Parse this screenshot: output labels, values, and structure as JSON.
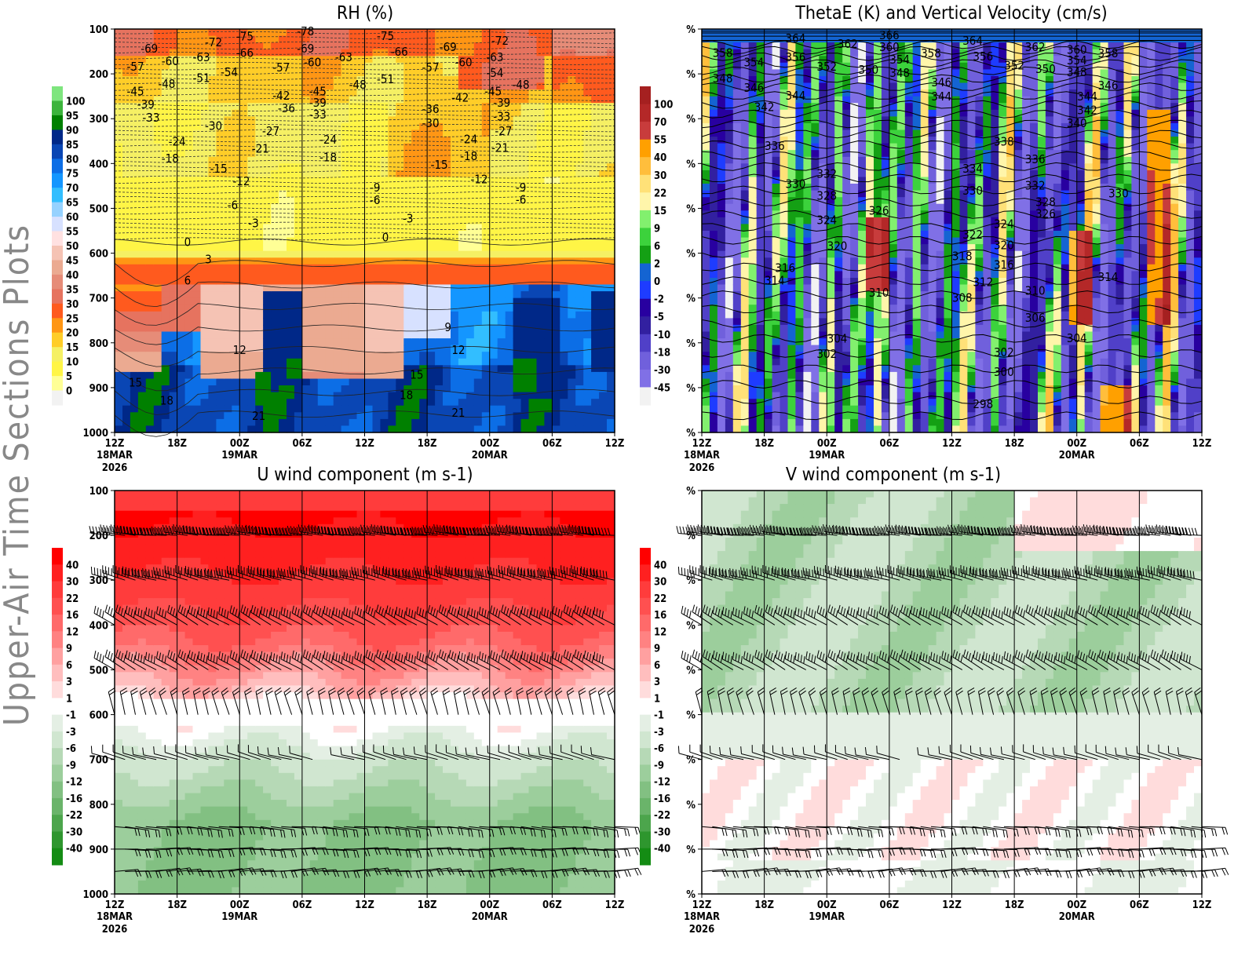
{
  "page_title": "Upper-Air Time Sections Plots",
  "time_axis": {
    "ticks": [
      "12Z",
      "18Z",
      "00Z",
      "06Z",
      "12Z",
      "18Z",
      "00Z",
      "06Z",
      "12Z"
    ],
    "tick_times": [
      "2026-03-18T12:00",
      "2026-03-18T18:00",
      "2026-03-19T00:00",
      "2026-03-19T06:00",
      "2026-03-19T12:00",
      "2026-03-19T18:00",
      "2026-03-20T00:00",
      "2026-03-20T06:00",
      "2026-03-20T12:00"
    ],
    "date_labels": [
      {
        "tick": 0,
        "day": "18MAR",
        "year": "2026"
      },
      {
        "tick": 2,
        "day": "19MAR"
      },
      {
        "tick": 6,
        "day": "20MAR"
      }
    ]
  },
  "chart_data": [
    {
      "type": "heatmap",
      "title": "RH (%)",
      "filled_field": "relative humidity",
      "contour_field": "temperature",
      "y_axis": {
        "ticks": [
          100,
          200,
          300,
          400,
          500,
          600,
          700,
          800,
          900,
          1000
        ],
        "range": [
          100,
          1000
        ],
        "inverted": true
      },
      "colorbar": {
        "levels": [
          0,
          5,
          10,
          15,
          20,
          25,
          30,
          35,
          40,
          45,
          50,
          55,
          60,
          65,
          70,
          75,
          80,
          85,
          90,
          95,
          100
        ],
        "colors": [
          "#f2f2f2",
          "#ffff96",
          "#fff546",
          "#f5f064",
          "#ffcd28",
          "#ff9614",
          "#ff5a1e",
          "#e6735f",
          "#e68c78",
          "#ebaa91",
          "#f5c3b4",
          "#ffe1e1",
          "#d7e1ff",
          "#96d2ff",
          "#32beff",
          "#1496ff",
          "#0c6ee6",
          "#0a46b4",
          "#002888",
          "#008000",
          "#3cb43c",
          "#7ee57e"
        ]
      },
      "contour_labels": [
        [
          "2026-03-18T15:20",
          144,
          "-69"
        ],
        [
          "2026-03-18T21:30",
          130,
          "-72"
        ],
        [
          "2026-03-19T00:30",
          117,
          "-75"
        ],
        [
          "2026-03-19T06:20",
          105,
          "-78"
        ],
        [
          "2026-03-19T14:00",
          116,
          "-75"
        ],
        [
          "2026-03-19T20:00",
          140,
          "-69"
        ],
        [
          "2026-03-20T01:00",
          126,
          "-72"
        ],
        [
          "2026-03-19T00:30",
          153,
          "-66"
        ],
        [
          "2026-03-19T06:20",
          144,
          "-69"
        ],
        [
          "2026-03-19T15:20",
          151,
          "-66"
        ],
        [
          "2026-03-18T20:20",
          163,
          "-63"
        ],
        [
          "2026-03-18T17:20",
          172,
          "-60"
        ],
        [
          "2026-03-18T14:00",
          184,
          "-57"
        ],
        [
          "2026-03-19T10:00",
          163,
          "-63"
        ],
        [
          "2026-03-19T07:00",
          174,
          "-60"
        ],
        [
          "2026-03-19T04:00",
          186,
          "-57"
        ],
        [
          "2026-03-19T21:30",
          174,
          "-60"
        ],
        [
          "2026-03-19T18:20",
          186,
          "-57"
        ],
        [
          "2026-03-20T00:30",
          163,
          "-63"
        ],
        [
          "2026-03-20T00:30",
          198,
          "-54"
        ],
        [
          "2026-03-18T20:20",
          209,
          "-51"
        ],
        [
          "2026-03-18T23:00",
          196,
          "-54"
        ],
        [
          "2026-03-18T17:00",
          223,
          "-48"
        ],
        [
          "2026-03-18T14:00",
          239,
          "-45"
        ],
        [
          "2026-03-19T14:00",
          212,
          "-51"
        ],
        [
          "2026-03-19T11:20",
          224,
          "-48"
        ],
        [
          "2026-03-20T03:00",
          224,
          "-48"
        ],
        [
          "2026-03-20T00:20",
          239,
          "-45"
        ],
        [
          "2026-03-19T21:10",
          253,
          "-42"
        ],
        [
          "2026-03-19T07:30",
          239,
          "-45"
        ],
        [
          "2026-03-19T04:00",
          249,
          "-42"
        ],
        [
          "2026-03-18T15:00",
          268,
          "-39"
        ],
        [
          "2026-03-19T07:30",
          265,
          "-39"
        ],
        [
          "2026-03-19T04:30",
          277,
          "-36"
        ],
        [
          "2026-03-20T01:10",
          265,
          "-39"
        ],
        [
          "2026-03-19T18:20",
          279,
          "-36"
        ],
        [
          "2026-03-18T15:30",
          298,
          "-33"
        ],
        [
          "2026-03-19T07:30",
          291,
          "-33"
        ],
        [
          "2026-03-20T01:10",
          295,
          "-33"
        ],
        [
          "2026-03-19T18:20",
          310,
          "-30"
        ],
        [
          "2026-03-18T21:30",
          316,
          "-30"
        ],
        [
          "2026-03-19T03:00",
          328,
          "-27"
        ],
        [
          "2026-03-18T18:00",
          351,
          "-24"
        ],
        [
          "2026-03-19T02:00",
          367,
          "-21"
        ],
        [
          "2026-03-19T08:30",
          347,
          "-24"
        ],
        [
          "2026-03-20T01:20",
          328,
          "-27"
        ],
        [
          "2026-03-19T22:00",
          346,
          "-24"
        ],
        [
          "2026-03-20T01:00",
          365,
          "-21"
        ],
        [
          "2026-03-18T17:20",
          389,
          "-18"
        ],
        [
          "2026-03-19T08:30",
          386,
          "-18"
        ],
        [
          "2026-03-19T22:00",
          384,
          "-18"
        ],
        [
          "2026-03-18T22:00",
          412,
          "-15"
        ],
        [
          "2026-03-19T19:10",
          403,
          "-15"
        ],
        [
          "2026-03-19T00:10",
          440,
          "-12"
        ],
        [
          "2026-03-19T23:00",
          435,
          "-12"
        ],
        [
          "2026-03-19T13:00",
          454,
          "-9"
        ],
        [
          "2026-03-19T13:00",
          482,
          "-6"
        ],
        [
          "2026-03-20T03:00",
          454,
          "-9"
        ],
        [
          "2026-03-20T03:00",
          481,
          "-6"
        ],
        [
          "2026-03-18T23:20",
          493,
          "-6"
        ],
        [
          "2026-03-19T01:20",
          533,
          "-3"
        ],
        [
          "2026-03-19T16:10",
          523,
          "-3"
        ],
        [
          "2026-03-18T19:00",
          575,
          "0"
        ],
        [
          "2026-03-19T14:00",
          565,
          "0"
        ],
        [
          "2026-03-18T21:00",
          614,
          "3"
        ],
        [
          "2026-03-18T19:00",
          661,
          "6"
        ],
        [
          "2026-03-19T20:00",
          765,
          "9"
        ],
        [
          "2026-03-19T00:00",
          816,
          "12"
        ],
        [
          "2026-03-19T21:00",
          816,
          "12"
        ],
        [
          "2026-03-18T14:00",
          889,
          "15"
        ],
        [
          "2026-03-19T17:00",
          871,
          "15"
        ],
        [
          "2026-03-18T17:00",
          929,
          "18"
        ],
        [
          "2026-03-19T16:00",
          917,
          "18"
        ],
        [
          "2026-03-19T01:50",
          963,
          "21"
        ],
        [
          "2026-03-19T21:00",
          956,
          "21"
        ]
      ]
    },
    {
      "type": "heatmap",
      "title": "ThetaE (K) and Vertical Velocity (cm/s)",
      "filled_field": "vertical velocity",
      "contour_field": "theta-e",
      "y_axis": {
        "tick_label": "%",
        "range": [
          100,
          1000
        ],
        "inverted": true
      },
      "colorbar": {
        "levels": [
          -45,
          -30,
          -18,
          -10,
          -5,
          -2,
          0,
          2,
          6,
          9,
          15,
          22,
          30,
          40,
          55,
          70,
          100
        ],
        "colors": [
          "#f2f2f2",
          "#8070e6",
          "#7060dc",
          "#5040c8",
          "#3220a0",
          "#2800a0",
          "#1e3cff",
          "#1464d2",
          "#14a014",
          "#3cd23c",
          "#82f06e",
          "#fff5aa",
          "#ffe178",
          "#ffbe3c",
          "#ffa000",
          "#c83c3c",
          "#b42828",
          "#a52020"
        ]
      },
      "contour_labels": [
        [
          "2026-03-18T21:00",
          121,
          "364"
        ],
        [
          "2026-03-19T02:00",
          133,
          "362"
        ],
        [
          "2026-03-19T06:00",
          114,
          "366"
        ],
        [
          "2026-03-19T06:00",
          140,
          "360"
        ],
        [
          "2026-03-19T10:00",
          154,
          "358"
        ],
        [
          "2026-03-19T14:00",
          126,
          "364"
        ],
        [
          "2026-03-19T20:00",
          140,
          "362"
        ],
        [
          "2026-03-20T00:00",
          146,
          "360"
        ],
        [
          "2026-03-20T03:00",
          154,
          "358"
        ],
        [
          "2026-03-19T07:00",
          168,
          "354"
        ],
        [
          "2026-03-19T15:00",
          161,
          "356"
        ],
        [
          "2026-03-20T00:00",
          170,
          "354"
        ],
        [
          "2026-03-18T14:00",
          153,
          "358"
        ],
        [
          "2026-03-18T17:00",
          174,
          "354"
        ],
        [
          "2026-03-18T21:00",
          163,
          "356"
        ],
        [
          "2026-03-19T00:00",
          184,
          "352"
        ],
        [
          "2026-03-19T04:00",
          191,
          "350"
        ],
        [
          "2026-03-19T07:00",
          198,
          "348"
        ],
        [
          "2026-03-19T18:00",
          181,
          "352"
        ],
        [
          "2026-03-19T21:00",
          189,
          "350"
        ],
        [
          "2026-03-20T00:00",
          196,
          "348"
        ],
        [
          "2026-03-18T14:00",
          210,
          "348"
        ],
        [
          "2026-03-18T17:00",
          231,
          "346"
        ],
        [
          "2026-03-19T11:00",
          219,
          "346"
        ],
        [
          "2026-03-19T11:00",
          251,
          "344"
        ],
        [
          "2026-03-18T21:00",
          249,
          "344"
        ],
        [
          "2026-03-18T18:00",
          274,
          "342"
        ],
        [
          "2026-03-20T03:00",
          226,
          "346"
        ],
        [
          "2026-03-20T01:00",
          251,
          "344"
        ],
        [
          "2026-03-20T01:00",
          281,
          "342"
        ],
        [
          "2026-03-20T00:00",
          310,
          "340"
        ],
        [
          "2026-03-19T17:00",
          351,
          "338"
        ],
        [
          "2026-03-18T19:00",
          361,
          "336"
        ],
        [
          "2026-03-19T20:00",
          391,
          "336"
        ],
        [
          "2026-03-19T14:00",
          412,
          "334"
        ],
        [
          "2026-03-19T00:00",
          423,
          "332"
        ],
        [
          "2026-03-18T21:00",
          446,
          "330"
        ],
        [
          "2026-03-19T00:00",
          472,
          "328"
        ],
        [
          "2026-03-19T20:00",
          449,
          "332"
        ],
        [
          "2026-03-19T14:00",
          461,
          "330"
        ],
        [
          "2026-03-20T04:00",
          467,
          "330"
        ],
        [
          "2026-03-19T05:00",
          505,
          "326"
        ],
        [
          "2026-03-19T21:00",
          486,
          "328"
        ],
        [
          "2026-03-19T21:00",
          512,
          "326"
        ],
        [
          "2026-03-19T00:00",
          526,
          "324"
        ],
        [
          "2026-03-19T17:00",
          535,
          "324"
        ],
        [
          "2026-03-19T14:00",
          559,
          "322"
        ],
        [
          "2026-03-19T01:00",
          584,
          "320"
        ],
        [
          "2026-03-19T17:00",
          582,
          "320"
        ],
        [
          "2026-03-19T13:00",
          607,
          "318"
        ],
        [
          "2026-03-18T20:00",
          633,
          "316"
        ],
        [
          "2026-03-19T17:00",
          626,
          "316"
        ],
        [
          "2026-03-18T19:00",
          661,
          "314"
        ],
        [
          "2026-03-19T15:00",
          665,
          "312"
        ],
        [
          "2026-03-20T03:00",
          653,
          "314"
        ],
        [
          "2026-03-19T05:00",
          688,
          "310"
        ],
        [
          "2026-03-19T20:00",
          684,
          "310"
        ],
        [
          "2026-03-19T13:00",
          700,
          "308"
        ],
        [
          "2026-03-19T20:00",
          744,
          "306"
        ],
        [
          "2026-03-19T01:00",
          791,
          "304"
        ],
        [
          "2026-03-20T00:00",
          790,
          "304"
        ],
        [
          "2026-03-19T00:00",
          825,
          "302"
        ],
        [
          "2026-03-19T17:00",
          821,
          "302"
        ],
        [
          "2026-03-19T17:00",
          865,
          "300"
        ],
        [
          "2026-03-19T15:00",
          937,
          "298"
        ]
      ]
    },
    {
      "type": "heatmap",
      "title": "U wind component (m s-1)",
      "filled_field": "u wind",
      "y_axis": {
        "ticks": [
          100,
          200,
          300,
          400,
          500,
          600,
          700,
          800,
          900,
          1000
        ],
        "range": [
          100,
          1000
        ],
        "inverted": true
      },
      "colorbar": {
        "levels": [
          -40,
          -30,
          -22,
          -16,
          -12,
          -9,
          -6,
          -3,
          -1,
          1,
          3,
          6,
          9,
          12,
          16,
          22,
          30,
          40
        ],
        "colors": [
          "#148c14",
          "#2e962e",
          "#4ca54c",
          "#6ab46a",
          "#82c082",
          "#9cce9c",
          "#b6d9b6",
          "#d0e6d0",
          "#e4efe4",
          "#ffffff",
          "#ffdcdc",
          "#ffbebe",
          "#ffa0a0",
          "#ff8282",
          "#ff6a6a",
          "#ff5050",
          "#ff3c3c",
          "#ff2020",
          "#ff0000"
        ]
      },
      "wind_barb_levels": [
        200,
        300,
        400,
        500,
        600,
        700,
        850,
        900,
        950
      ]
    },
    {
      "type": "heatmap",
      "title": "V wind component (m s-1)",
      "filled_field": "v wind",
      "y_axis": {
        "tick_label": "%",
        "range": [
          100,
          1000
        ],
        "inverted": true
      },
      "colorbar": {
        "levels": [
          -40,
          -30,
          -22,
          -16,
          -12,
          -9,
          -6,
          -3,
          -1,
          1,
          3,
          6,
          9,
          12,
          16,
          22,
          30,
          40
        ],
        "colors": [
          "#148c14",
          "#2e962e",
          "#4ca54c",
          "#6ab46a",
          "#82c082",
          "#9cce9c",
          "#b6d9b6",
          "#d0e6d0",
          "#e4efe4",
          "#ffffff",
          "#ffdcdc",
          "#ffbebe",
          "#ffa0a0",
          "#ff8282",
          "#ff6a6a",
          "#ff5050",
          "#ff3c3c",
          "#ff2020",
          "#ff0000"
        ]
      },
      "wind_barb_levels": [
        200,
        300,
        400,
        500,
        600,
        700,
        850,
        900,
        950
      ]
    }
  ]
}
